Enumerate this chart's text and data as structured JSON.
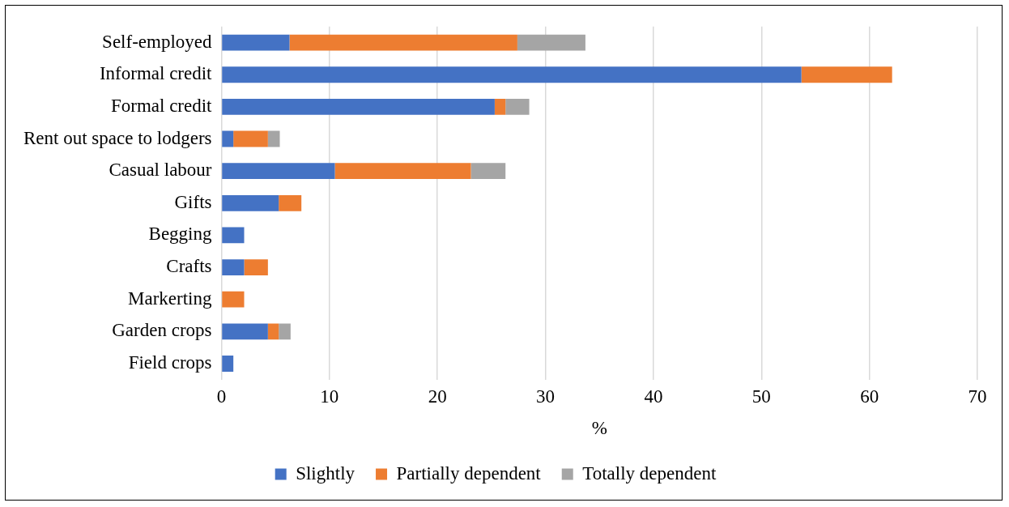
{
  "chart_data": {
    "type": "bar",
    "orientation": "horizontal",
    "stacked": true,
    "categories": [
      "Self-employed",
      "Informal credit",
      "Formal credit",
      "Rent out space to lodgers",
      "Casual labour",
      "Gifts",
      "Begging",
      "Crafts",
      "Markerting",
      "Garden crops",
      "Field crops"
    ],
    "series": [
      {
        "name": "Slightly",
        "color": "#4472c4",
        "values": [
          6.3,
          53.7,
          25.3,
          1.1,
          10.5,
          5.3,
          2.1,
          2.1,
          0,
          4.3,
          1.1
        ]
      },
      {
        "name": "Partially dependent",
        "color": "#ed7d31",
        "values": [
          21.1,
          8.4,
          1.0,
          3.2,
          12.6,
          2.1,
          0,
          2.2,
          2.1,
          1.0,
          0
        ]
      },
      {
        "name": "Totally dependent",
        "color": "#a5a5a5",
        "values": [
          6.3,
          0,
          2.2,
          1.1,
          3.2,
          0,
          0,
          0,
          0,
          1.1,
          0
        ]
      }
    ],
    "xlabel": "%",
    "xlim": [
      0,
      70
    ],
    "xticks": [
      0,
      10,
      20,
      30,
      40,
      50,
      60,
      70
    ],
    "grid": "x",
    "legend": "bottom"
  }
}
